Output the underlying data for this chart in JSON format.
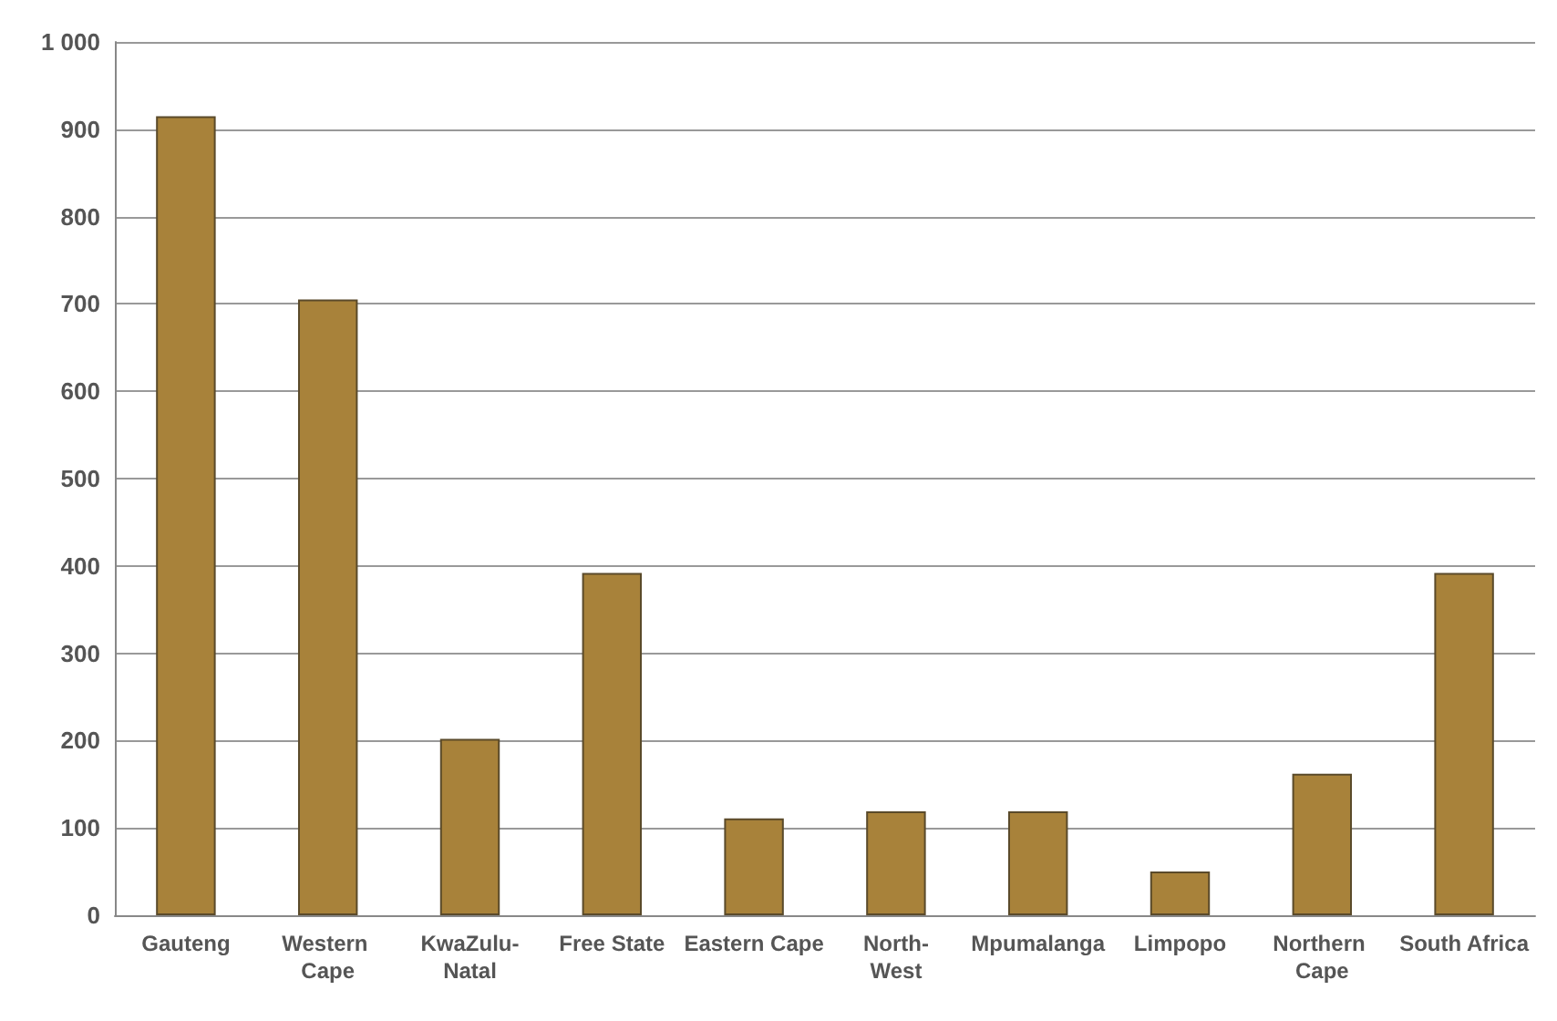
{
  "chart_data": {
    "type": "bar",
    "categories": [
      "Gauteng",
      "Western Cape",
      "KwaZulu-Natal",
      "Free State",
      "Eastern Cape",
      "North-West",
      "Mpumalanga",
      "Limpopo",
      "Northern Cape",
      "South Africa"
    ],
    "values": [
      915,
      705,
      202,
      392,
      111,
      119,
      119,
      50,
      162,
      392
    ],
    "color": "#a8823a",
    "ylim": [
      0,
      1000
    ],
    "yticks": [
      0,
      100,
      200,
      300,
      400,
      500,
      600,
      700,
      800,
      900,
      {
        "value": 1000,
        "label": "1 000"
      }
    ],
    "grid": "y"
  }
}
